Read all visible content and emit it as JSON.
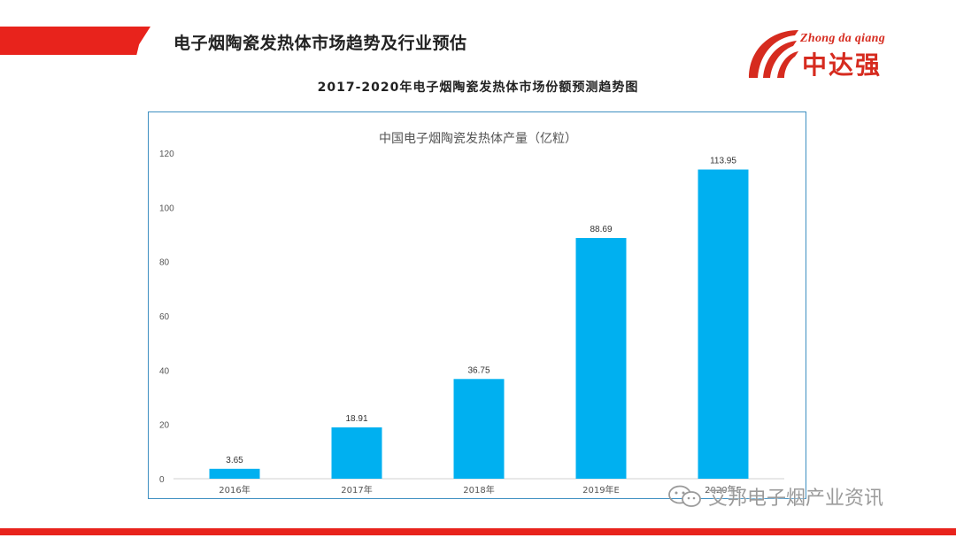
{
  "header": {
    "title": "电子烟陶瓷发热体市场趋势及行业预估"
  },
  "logo": {
    "en": "Zhong da qiang",
    "cn": "中达强",
    "color": "#d62b1f"
  },
  "slide_title": "2017-2020年电子烟陶瓷发热体市场份额预测趋势图",
  "watermark": {
    "text": "艾邦电子烟产业资讯",
    "icon": "wechat-icon"
  },
  "colors": {
    "accent": "#e8231c",
    "bar": "#00b0f0",
    "frame": "#3d8fc1"
  },
  "chart_data": {
    "type": "bar",
    "title": "中国电子烟陶瓷发热体产量（亿粒）",
    "categories": [
      "2016年",
      "2017年",
      "2018年",
      "2019年E",
      "2020年E"
    ],
    "values": [
      3.65,
      18.91,
      36.75,
      88.69,
      113.95
    ],
    "data_labels": [
      "3.65",
      "18.91",
      "36.75",
      "88.69",
      "113.95"
    ],
    "xlabel": "",
    "ylabel": "",
    "ylim": [
      0,
      120
    ],
    "yticks": [
      0,
      20,
      40,
      60,
      80,
      100,
      120
    ],
    "grid": false,
    "legend": "none"
  }
}
